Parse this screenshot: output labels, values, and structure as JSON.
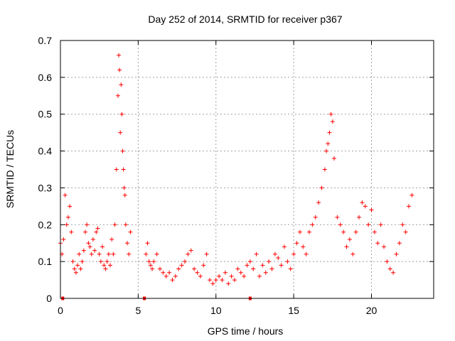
{
  "chart_data": {
    "type": "scatter",
    "title": "Day 252 of 2014, SRMTID for receiver p367",
    "xlabel": "GPS time / hours",
    "ylabel": "SRMTID / TECUs",
    "xlim": [
      0,
      24
    ],
    "ylim": [
      0,
      0.7
    ],
    "xticks": [
      0,
      5,
      10,
      15,
      20
    ],
    "xtick_labels": [
      "0",
      "5",
      "10",
      "15",
      "20"
    ],
    "yticks": [
      0,
      0.1,
      0.2,
      0.3,
      0.4,
      0.5,
      0.6,
      0.7
    ],
    "ytick_labels": [
      "0",
      "0.1",
      "0.2",
      "0.3",
      "0.4",
      "0.5",
      "0.6",
      "0.7"
    ],
    "grid": true,
    "marker": "plus",
    "color": "#ff0000",
    "zero_markers_x": [
      0.15,
      5.4,
      12.2
    ],
    "series": [
      {
        "name": "SRMTID",
        "x": [
          0.0,
          0.1,
          0.2,
          0.3,
          0.4,
          0.5,
          0.6,
          0.7,
          0.8,
          0.9,
          1.0,
          1.1,
          1.2,
          1.3,
          1.4,
          1.5,
          1.6,
          1.7,
          1.8,
          1.9,
          2.0,
          2.1,
          2.2,
          2.3,
          2.4,
          2.5,
          2.6,
          2.7,
          2.8,
          2.9,
          3.0,
          3.1,
          3.2,
          3.3,
          3.4,
          3.5,
          3.6,
          3.7,
          3.75,
          3.8,
          3.85,
          3.9,
          3.95,
          4.0,
          4.05,
          4.1,
          4.15,
          4.2,
          4.3,
          4.4,
          4.5,
          5.5,
          5.6,
          5.7,
          5.8,
          5.9,
          6.0,
          6.2,
          6.4,
          6.6,
          6.8,
          7.0,
          7.2,
          7.4,
          7.6,
          7.8,
          8.0,
          8.2,
          8.4,
          8.6,
          8.8,
          9.0,
          9.2,
          9.4,
          9.6,
          9.8,
          10.0,
          10.2,
          10.4,
          10.6,
          10.8,
          11.0,
          11.2,
          11.4,
          11.6,
          11.8,
          12.0,
          12.2,
          12.4,
          12.6,
          12.8,
          13.0,
          13.2,
          13.4,
          13.6,
          13.8,
          14.0,
          14.2,
          14.4,
          14.6,
          14.8,
          15.0,
          15.2,
          15.4,
          15.6,
          15.8,
          16.0,
          16.2,
          16.4,
          16.6,
          16.8,
          17.0,
          17.1,
          17.2,
          17.3,
          17.4,
          17.5,
          17.6,
          17.8,
          18.0,
          18.2,
          18.4,
          18.6,
          18.8,
          19.0,
          19.2,
          19.4,
          19.6,
          19.8,
          20.0,
          20.2,
          20.4,
          20.6,
          20.8,
          21.0,
          21.2,
          21.4,
          21.6,
          21.8,
          22.0,
          22.2,
          22.4,
          22.6
        ],
        "y": [
          0.15,
          0.12,
          0.16,
          0.28,
          0.2,
          0.22,
          0.25,
          0.18,
          0.1,
          0.08,
          0.07,
          0.09,
          0.12,
          0.08,
          0.1,
          0.13,
          0.18,
          0.2,
          0.15,
          0.14,
          0.12,
          0.16,
          0.13,
          0.18,
          0.19,
          0.12,
          0.1,
          0.14,
          0.09,
          0.08,
          0.1,
          0.12,
          0.09,
          0.16,
          0.12,
          0.2,
          0.35,
          0.55,
          0.66,
          0.62,
          0.45,
          0.58,
          0.5,
          0.4,
          0.35,
          0.3,
          0.28,
          0.2,
          0.15,
          0.12,
          0.18,
          0.12,
          0.15,
          0.1,
          0.09,
          0.08,
          0.1,
          0.12,
          0.08,
          0.07,
          0.06,
          0.07,
          0.05,
          0.06,
          0.08,
          0.09,
          0.1,
          0.12,
          0.13,
          0.08,
          0.07,
          0.06,
          0.09,
          0.12,
          0.05,
          0.04,
          0.05,
          0.06,
          0.05,
          0.07,
          0.04,
          0.06,
          0.05,
          0.08,
          0.07,
          0.06,
          0.09,
          0.1,
          0.08,
          0.12,
          0.06,
          0.09,
          0.07,
          0.1,
          0.08,
          0.12,
          0.11,
          0.09,
          0.14,
          0.1,
          0.08,
          0.12,
          0.15,
          0.18,
          0.14,
          0.12,
          0.18,
          0.2,
          0.22,
          0.26,
          0.3,
          0.35,
          0.4,
          0.42,
          0.45,
          0.5,
          0.48,
          0.38,
          0.22,
          0.2,
          0.18,
          0.14,
          0.16,
          0.12,
          0.18,
          0.22,
          0.26,
          0.25,
          0.2,
          0.24,
          0.18,
          0.15,
          0.2,
          0.14,
          0.1,
          0.08,
          0.07,
          0.12,
          0.15,
          0.2,
          0.18,
          0.25,
          0.28
        ]
      }
    ]
  }
}
